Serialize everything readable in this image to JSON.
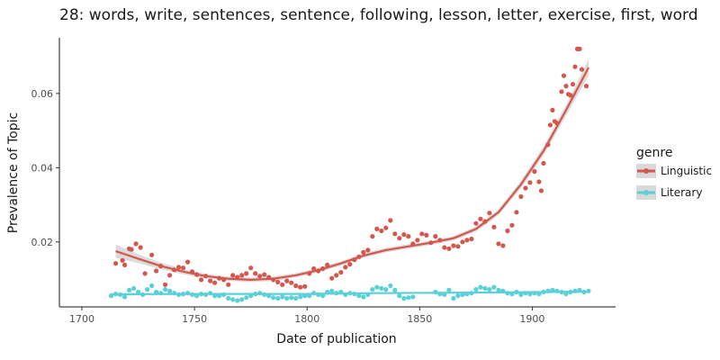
{
  "chart_data": {
    "type": "scatter",
    "title": "28: words, write, sentences, sentence, following, lesson, letter, exercise, first, word",
    "xlabel": "Date of publication",
    "ylabel": "Prevalence of Topic",
    "xlim": [
      1690,
      1937
    ],
    "ylim": [
      0.0025,
      0.075
    ],
    "xticks": [
      1700,
      1750,
      1800,
      1850,
      1900
    ],
    "yticks": [
      0.02,
      0.04,
      0.06
    ],
    "xtick_labels": [
      "1700",
      "1750",
      "1800",
      "1850",
      "1900"
    ],
    "ytick_labels": [
      "0.02",
      "0.04",
      "0.06"
    ],
    "grid": false,
    "legend": {
      "title": "genre",
      "placement": "right"
    },
    "series": [
      {
        "name": "Linguistic",
        "color": "#d4574d",
        "points": [
          [
            1715,
            0.0142
          ],
          [
            1718,
            0.015
          ],
          [
            1719,
            0.0138
          ],
          [
            1721,
            0.0182
          ],
          [
            1722,
            0.018
          ],
          [
            1724,
            0.0195
          ],
          [
            1726,
            0.0185
          ],
          [
            1728,
            0.0115
          ],
          [
            1731,
            0.0165
          ],
          [
            1733,
            0.0122
          ],
          [
            1735,
            0.0135
          ],
          [
            1737,
            0.0085
          ],
          [
            1739,
            0.011
          ],
          [
            1741,
            0.0125
          ],
          [
            1743,
            0.0132
          ],
          [
            1745,
            0.013
          ],
          [
            1747,
            0.0146
          ],
          [
            1749,
            0.012
          ],
          [
            1751,
            0.0112
          ],
          [
            1753,
            0.0098
          ],
          [
            1755,
            0.0108
          ],
          [
            1757,
            0.0095
          ],
          [
            1759,
            0.009
          ],
          [
            1761,
            0.0102
          ],
          [
            1763,
            0.0098
          ],
          [
            1765,
            0.0085
          ],
          [
            1767,
            0.011
          ],
          [
            1769,
            0.0105
          ],
          [
            1771,
            0.011
          ],
          [
            1773,
            0.0115
          ],
          [
            1775,
            0.013
          ],
          [
            1777,
            0.0115
          ],
          [
            1779,
            0.0108
          ],
          [
            1781,
            0.0112
          ],
          [
            1783,
            0.0105
          ],
          [
            1785,
            0.0098
          ],
          [
            1787,
            0.0092
          ],
          [
            1789,
            0.0085
          ],
          [
            1791,
            0.0095
          ],
          [
            1793,
            0.009
          ],
          [
            1795,
            0.0082
          ],
          [
            1797,
            0.0078
          ],
          [
            1799,
            0.008
          ],
          [
            1801,
            0.0115
          ],
          [
            1803,
            0.0128
          ],
          [
            1805,
            0.0122
          ],
          [
            1807,
            0.0128
          ],
          [
            1809,
            0.0138
          ],
          [
            1811,
            0.0102
          ],
          [
            1813,
            0.011
          ],
          [
            1815,
            0.0118
          ],
          [
            1817,
            0.0132
          ],
          [
            1819,
            0.014
          ],
          [
            1821,
            0.0152
          ],
          [
            1823,
            0.016
          ],
          [
            1825,
            0.0172
          ],
          [
            1827,
            0.0178
          ],
          [
            1829,
            0.0215
          ],
          [
            1831,
            0.0235
          ],
          [
            1833,
            0.023
          ],
          [
            1835,
            0.0238
          ],
          [
            1837,
            0.0258
          ],
          [
            1839,
            0.0222
          ],
          [
            1841,
            0.021
          ],
          [
            1843,
            0.022
          ],
          [
            1845,
            0.0215
          ],
          [
            1847,
            0.0195
          ],
          [
            1849,
            0.0205
          ],
          [
            1851,
            0.0222
          ],
          [
            1853,
            0.0218
          ],
          [
            1855,
            0.0198
          ],
          [
            1857,
            0.0215
          ],
          [
            1859,
            0.0205
          ],
          [
            1861,
            0.0185
          ],
          [
            1863,
            0.0182
          ],
          [
            1865,
            0.019
          ],
          [
            1867,
            0.0188
          ],
          [
            1869,
            0.02
          ],
          [
            1871,
            0.0205
          ],
          [
            1873,
            0.0208
          ],
          [
            1875,
            0.025
          ],
          [
            1877,
            0.0262
          ],
          [
            1879,
            0.0255
          ],
          [
            1881,
            0.0278
          ],
          [
            1883,
            0.024
          ],
          [
            1885,
            0.0195
          ],
          [
            1887,
            0.019
          ],
          [
            1889,
            0.023
          ],
          [
            1891,
            0.0245
          ],
          [
            1893,
            0.028
          ],
          [
            1895,
            0.0322
          ],
          [
            1897,
            0.0345
          ],
          [
            1899,
            0.036
          ],
          [
            1901,
            0.039
          ],
          [
            1903,
            0.0362
          ],
          [
            1904,
            0.0338
          ],
          [
            1905,
            0.0412
          ],
          [
            1907,
            0.0462
          ],
          [
            1908,
            0.0515
          ],
          [
            1909,
            0.0555
          ],
          [
            1910,
            0.0525
          ],
          [
            1911,
            0.052
          ],
          [
            1913,
            0.0605
          ],
          [
            1914,
            0.0648
          ],
          [
            1915,
            0.062
          ],
          [
            1916,
            0.0598
          ],
          [
            1917,
            0.0595
          ],
          [
            1918,
            0.0625
          ],
          [
            1919,
            0.0672
          ],
          [
            1920,
            0.072
          ],
          [
            1921,
            0.072
          ],
          [
            1922,
            0.0665
          ],
          [
            1924,
            0.062
          ]
        ],
        "fit": [
          [
            1715,
            0.0175
          ],
          [
            1725,
            0.0155
          ],
          [
            1735,
            0.0135
          ],
          [
            1745,
            0.012
          ],
          [
            1755,
            0.0108
          ],
          [
            1765,
            0.0101
          ],
          [
            1775,
            0.0098
          ],
          [
            1785,
            0.0101
          ],
          [
            1795,
            0.011
          ],
          [
            1805,
            0.0124
          ],
          [
            1815,
            0.0142
          ],
          [
            1825,
            0.0163
          ],
          [
            1835,
            0.0178
          ],
          [
            1845,
            0.0188
          ],
          [
            1855,
            0.0198
          ],
          [
            1865,
            0.021
          ],
          [
            1875,
            0.0235
          ],
          [
            1885,
            0.028
          ],
          [
            1895,
            0.0355
          ],
          [
            1905,
            0.0445
          ],
          [
            1915,
            0.0555
          ],
          [
            1925,
            0.067
          ]
        ],
        "band_halfwidth": [
          0.0018,
          0.0012,
          0.0009,
          0.0007,
          0.0006,
          0.0006,
          0.0006,
          0.0006,
          0.0006,
          0.0006,
          0.0006,
          0.0006,
          0.0006,
          0.0006,
          0.0006,
          0.0006,
          0.0007,
          0.0008,
          0.001,
          0.0012,
          0.0015,
          0.0022
        ]
      },
      {
        "name": "Literary",
        "color": "#5ad0d8",
        "points": [
          [
            1713,
            0.0055
          ],
          [
            1715,
            0.006
          ],
          [
            1717,
            0.0058
          ],
          [
            1719,
            0.0052
          ],
          [
            1721,
            0.007
          ],
          [
            1723,
            0.0075
          ],
          [
            1725,
            0.0065
          ],
          [
            1727,
            0.0058
          ],
          [
            1729,
            0.0072
          ],
          [
            1731,
            0.0082
          ],
          [
            1733,
            0.0065
          ],
          [
            1735,
            0.0062
          ],
          [
            1737,
            0.0072
          ],
          [
            1739,
            0.0068
          ],
          [
            1741,
            0.0062
          ],
          [
            1743,
            0.0058
          ],
          [
            1745,
            0.006
          ],
          [
            1747,
            0.0062
          ],
          [
            1749,
            0.0058
          ],
          [
            1751,
            0.0055
          ],
          [
            1753,
            0.006
          ],
          [
            1755,
            0.0058
          ],
          [
            1757,
            0.0062
          ],
          [
            1759,
            0.0055
          ],
          [
            1761,
            0.0055
          ],
          [
            1763,
            0.0058
          ],
          [
            1765,
            0.0048
          ],
          [
            1767,
            0.0045
          ],
          [
            1769,
            0.0042
          ],
          [
            1771,
            0.0045
          ],
          [
            1773,
            0.005
          ],
          [
            1775,
            0.0055
          ],
          [
            1777,
            0.006
          ],
          [
            1779,
            0.0062
          ],
          [
            1781,
            0.0058
          ],
          [
            1783,
            0.0055
          ],
          [
            1785,
            0.005
          ],
          [
            1787,
            0.0048
          ],
          [
            1789,
            0.0052
          ],
          [
            1791,
            0.0048
          ],
          [
            1793,
            0.005
          ],
          [
            1795,
            0.0048
          ],
          [
            1797,
            0.0052
          ],
          [
            1799,
            0.0055
          ],
          [
            1801,
            0.0055
          ],
          [
            1803,
            0.0062
          ],
          [
            1805,
            0.0058
          ],
          [
            1807,
            0.0055
          ],
          [
            1809,
            0.0065
          ],
          [
            1811,
            0.0068
          ],
          [
            1813,
            0.0062
          ],
          [
            1815,
            0.0065
          ],
          [
            1817,
            0.0058
          ],
          [
            1819,
            0.0062
          ],
          [
            1821,
            0.006
          ],
          [
            1823,
            0.0055
          ],
          [
            1825,
            0.0052
          ],
          [
            1827,
            0.0058
          ],
          [
            1829,
            0.0072
          ],
          [
            1831,
            0.0078
          ],
          [
            1833,
            0.0075
          ],
          [
            1835,
            0.0072
          ],
          [
            1837,
            0.0082
          ],
          [
            1839,
            0.007
          ],
          [
            1841,
            0.0055
          ],
          [
            1843,
            0.0048
          ],
          [
            1845,
            0.005
          ],
          [
            1847,
            0.0052
          ],
          [
            1857,
            0.0065
          ],
          [
            1859,
            0.006
          ],
          [
            1861,
            0.0058
          ],
          [
            1863,
            0.007
          ],
          [
            1865,
            0.0048
          ],
          [
            1867,
            0.0055
          ],
          [
            1869,
            0.0058
          ],
          [
            1871,
            0.006
          ],
          [
            1873,
            0.0062
          ],
          [
            1875,
            0.0072
          ],
          [
            1877,
            0.0078
          ],
          [
            1879,
            0.0075
          ],
          [
            1881,
            0.0072
          ],
          [
            1883,
            0.0078
          ],
          [
            1885,
            0.007
          ],
          [
            1887,
            0.0068
          ],
          [
            1889,
            0.0062
          ],
          [
            1891,
            0.006
          ],
          [
            1893,
            0.0065
          ],
          [
            1895,
            0.0058
          ],
          [
            1897,
            0.0062
          ],
          [
            1899,
            0.006
          ],
          [
            1901,
            0.0062
          ],
          [
            1903,
            0.006
          ],
          [
            1905,
            0.0065
          ],
          [
            1907,
            0.0068
          ],
          [
            1909,
            0.007
          ],
          [
            1911,
            0.0068
          ],
          [
            1913,
            0.0065
          ],
          [
            1915,
            0.006
          ],
          [
            1917,
            0.0065
          ],
          [
            1919,
            0.0068
          ],
          [
            1921,
            0.007
          ],
          [
            1923,
            0.0065
          ],
          [
            1925,
            0.0068
          ]
        ],
        "fit": [
          [
            1713,
            0.0059
          ],
          [
            1740,
            0.006
          ],
          [
            1770,
            0.006
          ],
          [
            1800,
            0.006
          ],
          [
            1830,
            0.0062
          ],
          [
            1860,
            0.0063
          ],
          [
            1890,
            0.0064
          ],
          [
            1925,
            0.0066
          ]
        ],
        "band_halfwidth": [
          0.0003,
          0.0002,
          0.0002,
          0.0002,
          0.0002,
          0.0002,
          0.0002,
          0.0003
        ]
      }
    ]
  }
}
